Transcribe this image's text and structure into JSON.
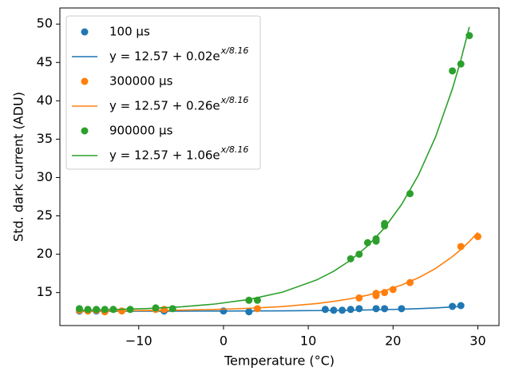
{
  "chart_data": {
    "type": "scatter",
    "x_label": "Temperature (°C)",
    "y_label": "Std. dark current (ADU)",
    "xlim": [
      -19.3,
      32.5
    ],
    "ylim": [
      10.7,
      52.1
    ],
    "xticks": [
      {
        "value": -10,
        "label": "−10"
      },
      0,
      10,
      20,
      30
    ],
    "yticks": [
      15,
      20,
      25,
      30,
      35,
      40,
      45,
      50
    ],
    "legend": "upper left",
    "series": [
      {
        "name": "100 μs",
        "type": "scatter",
        "color": "#1f77b4",
        "x": [
          -17,
          -16,
          -15,
          -14,
          -7,
          0,
          3,
          12,
          13,
          14,
          15,
          16,
          18,
          19,
          21,
          27,
          28
        ],
        "values": [
          12.6,
          12.6,
          12.6,
          12.6,
          12.6,
          12.6,
          12.5,
          12.8,
          12.7,
          12.7,
          12.8,
          12.9,
          12.9,
          12.9,
          12.9,
          13.2,
          13.3
        ]
      },
      {
        "name": "y = 12.57 + 0.02e",
        "exponent": "x/8.16",
        "type": "line",
        "color": "#1f77b4",
        "x": [
          -17,
          -13,
          -9,
          -5,
          -1,
          3,
          7,
          11,
          13,
          15,
          17,
          19,
          21,
          23,
          25,
          27,
          28
        ],
        "values": [
          12.57,
          12.57,
          12.58,
          12.58,
          12.59,
          12.6,
          12.62,
          12.65,
          12.67,
          12.7,
          12.73,
          12.78,
          12.83,
          12.9,
          13.0,
          13.12,
          13.19
        ]
      },
      {
        "name": "300000 μs",
        "type": "scatter",
        "color": "#ff7f0e",
        "x": [
          -17,
          -16,
          -15,
          -14,
          -12,
          -8,
          -7,
          4,
          16,
          18,
          18,
          19,
          20,
          22,
          28,
          30
        ],
        "values": [
          12.7,
          12.6,
          12.7,
          12.5,
          12.6,
          12.8,
          12.8,
          12.9,
          14.3,
          14.6,
          14.9,
          15.0,
          15.4,
          16.3,
          21.0,
          22.3
        ]
      },
      {
        "name": "y = 12.57 + 0.26e",
        "exponent": "x/8.16",
        "type": "line",
        "color": "#ff7f0e",
        "x": [
          -17,
          -13,
          -9,
          -5,
          -1,
          3,
          7,
          11,
          13,
          15,
          17,
          19,
          21,
          23,
          25,
          27,
          28,
          29,
          30
        ],
        "values": [
          12.6,
          12.62,
          12.66,
          12.71,
          12.8,
          12.95,
          13.18,
          13.57,
          13.85,
          14.2,
          14.66,
          15.24,
          15.98,
          16.93,
          18.13,
          19.68,
          20.61,
          21.66,
          22.84
        ]
      },
      {
        "name": "900000 μs",
        "type": "scatter",
        "color": "#2ca02c",
        "x": [
          -17,
          -16,
          -15,
          -14,
          -13,
          -11,
          -8,
          -6,
          3,
          4,
          15,
          16,
          17,
          18,
          18,
          19,
          19,
          22,
          27,
          28,
          29
        ],
        "values": [
          12.9,
          12.8,
          12.8,
          12.8,
          12.8,
          12.8,
          13.0,
          12.9,
          14.0,
          14.0,
          19.4,
          20.0,
          21.5,
          21.7,
          22.0,
          23.7,
          24.0,
          27.9,
          43.9,
          44.8,
          48.5
        ]
      },
      {
        "name": "y = 12.57 + 1.06e",
        "exponent": "x/8.16",
        "type": "line",
        "color": "#2ca02c",
        "x": [
          -17,
          -13,
          -9,
          -5,
          -1,
          3,
          7,
          11,
          13,
          15,
          17,
          19,
          21,
          23,
          25,
          27,
          28,
          29
        ],
        "values": [
          12.7,
          12.79,
          12.92,
          13.14,
          13.51,
          14.1,
          15.07,
          16.65,
          17.78,
          19.23,
          21.08,
          23.45,
          26.47,
          30.33,
          35.25,
          41.56,
          45.33,
          49.63
        ]
      }
    ]
  }
}
